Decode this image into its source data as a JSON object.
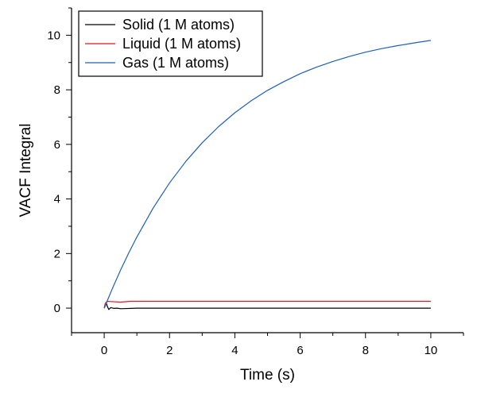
{
  "chart_data": {
    "type": "line",
    "title": "",
    "xlabel": "Time (s)",
    "ylabel": "VACF Integral",
    "xlim": [
      -1,
      11
    ],
    "ylim": [
      -0.9,
      11
    ],
    "xticks": [
      0,
      2,
      4,
      6,
      8,
      10
    ],
    "yticks": [
      0,
      2,
      4,
      6,
      8,
      10
    ],
    "x_minor_step": 1,
    "y_minor_step": 1,
    "grid": false,
    "legend_position": "top-left",
    "series": [
      {
        "name": "Solid (1 M atoms)",
        "color": "#000000",
        "x": [
          0,
          0.03,
          0.06,
          0.1,
          0.14,
          0.2,
          0.3,
          0.4,
          0.5,
          1,
          2,
          4,
          6,
          8,
          10
        ],
        "y": [
          0,
          0.15,
          0.2,
          0.05,
          -0.05,
          0.02,
          -0.01,
          0.0,
          -0.02,
          0.0,
          0.0,
          0.0,
          0.0,
          0.0,
          0.0
        ]
      },
      {
        "name": "Liquid (1 M atoms)",
        "color": "#e8141e",
        "x": [
          0,
          0.03,
          0.06,
          0.1,
          0.2,
          0.5,
          0.8,
          1,
          2,
          4,
          6,
          8,
          10
        ],
        "y": [
          0,
          0.15,
          0.22,
          0.25,
          0.24,
          0.22,
          0.25,
          0.25,
          0.25,
          0.25,
          0.25,
          0.25,
          0.25
        ]
      },
      {
        "name": "Gas (1 M atoms)",
        "color": "#1f5fb5",
        "x": [
          0,
          0.05,
          0.1,
          0.25,
          0.5,
          0.75,
          1,
          1.5,
          2,
          2.5,
          3,
          3.5,
          4,
          4.5,
          5,
          5.5,
          6,
          6.5,
          7,
          7.5,
          8,
          8.5,
          9,
          9.5,
          10
        ],
        "y": [
          0,
          0.12,
          0.29,
          0.72,
          1.39,
          2.02,
          2.61,
          3.67,
          4.59,
          5.38,
          6.06,
          6.65,
          7.16,
          7.6,
          7.98,
          8.3,
          8.59,
          8.83,
          9.04,
          9.22,
          9.38,
          9.51,
          9.62,
          9.72,
          9.81
        ]
      }
    ]
  }
}
